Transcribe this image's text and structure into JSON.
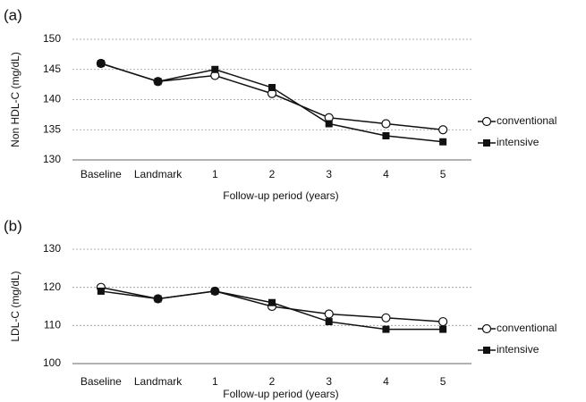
{
  "chart_data": [
    {
      "type": "line",
      "panel_label": "(a)",
      "y_label": "Non HDL-C (mg/dL)",
      "x_label": "Follow-up period (years)",
      "categories": [
        "Baseline",
        "Landmark",
        "1",
        "2",
        "3",
        "4",
        "5"
      ],
      "series": [
        {
          "name": "conventional",
          "color": "#111111",
          "marker": "circle",
          "values": [
            146,
            143,
            144,
            141,
            137,
            136,
            135
          ]
        },
        {
          "name": "intensive",
          "color": "#111111",
          "marker": "square",
          "values": [
            146,
            143,
            145,
            142,
            136,
            134,
            133
          ]
        }
      ],
      "ylim": [
        130,
        150
      ],
      "yticks": [
        130,
        135,
        140,
        145,
        150
      ],
      "grid": true,
      "legend": "right"
    },
    {
      "type": "line",
      "panel_label": "(b)",
      "y_label": "LDL-C (mg/dL)",
      "x_label": "Follow-up period (years)",
      "categories": [
        "Baseline",
        "Landmark",
        "1",
        "2",
        "3",
        "4",
        "5"
      ],
      "series": [
        {
          "name": "conventional",
          "color": "#111111",
          "marker": "circle",
          "values": [
            120,
            117,
            119,
            115,
            113,
            112,
            111
          ]
        },
        {
          "name": "intensive",
          "color": "#111111",
          "marker": "square",
          "values": [
            119,
            117,
            119,
            116,
            111,
            109,
            109
          ]
        }
      ],
      "ylim": [
        100,
        130
      ],
      "yticks": [
        100,
        110,
        120,
        130
      ],
      "grid": true,
      "legend": "right"
    }
  ]
}
